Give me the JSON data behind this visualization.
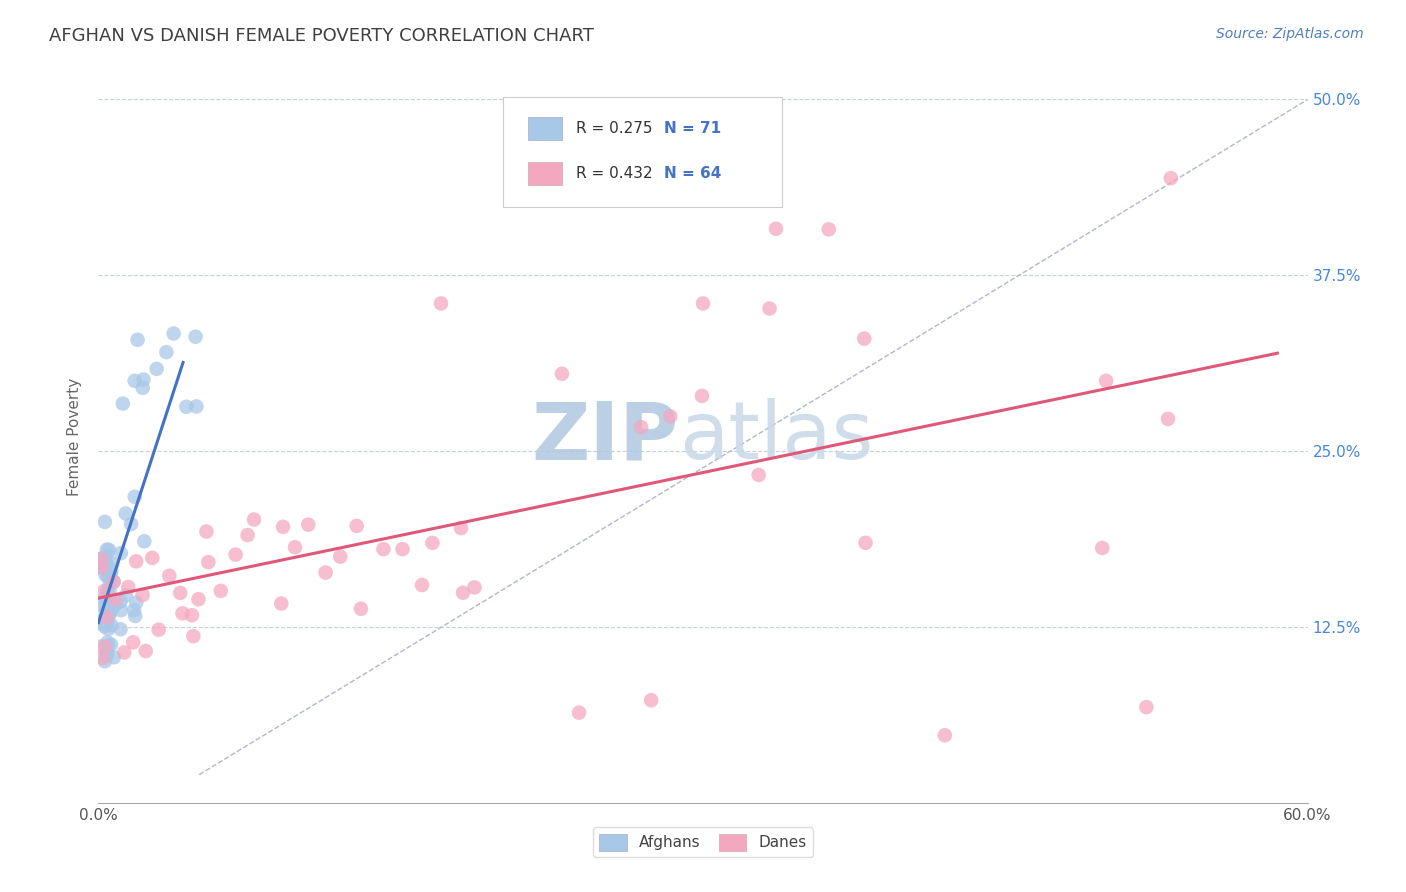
{
  "title": "AFGHAN VS DANISH FEMALE POVERTY CORRELATION CHART",
  "source_text": "Source: ZipAtlas.com",
  "ylabel": "Female Poverty",
  "xlim": [
    0.0,
    0.6
  ],
  "ylim": [
    0.0,
    0.52
  ],
  "xtick_vals": [
    0.0,
    0.1,
    0.2,
    0.3,
    0.4,
    0.5,
    0.6
  ],
  "xtick_labels_show": [
    "0.0%",
    "",
    "",
    "",
    "",
    "",
    "60.0%"
  ],
  "ytick_vals": [
    0.125,
    0.25,
    0.375,
    0.5
  ],
  "ytick_labels": [
    "12.5%",
    "25.0%",
    "37.5%",
    "50.0%"
  ],
  "afghan_R": 0.275,
  "afghan_N": 71,
  "danish_R": 0.432,
  "danish_N": 64,
  "afghan_color": "#a8c8e8",
  "danish_color": "#f4a8c0",
  "afghan_line_color": "#4472c4",
  "danish_line_color": "#e05878",
  "watermark_zip_color": "#b8d0e8",
  "watermark_atlas_color": "#c8d8e8",
  "background_color": "#ffffff",
  "grid_color": "#c8d0d8",
  "legend_color_afghan": "#a8c8e8",
  "legend_color_danish": "#f4a8c0",
  "legend_label_afghan": "Afghans",
  "legend_label_danish": "Danes",
  "title_color": "#404040",
  "source_color": "#5080c0",
  "axis_label_color": "#666666",
  "tick_label_color_right": "#4488dd",
  "ref_line_color": "#b0b8c8",
  "legend_text_R_color": "#4472c4",
  "legend_text_N_color": "#4472c4"
}
